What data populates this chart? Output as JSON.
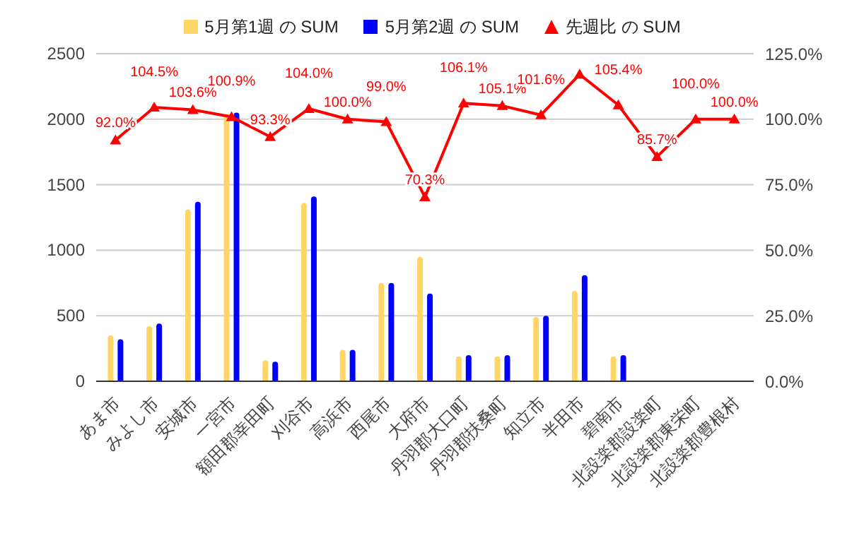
{
  "chart_data": {
    "type": "bar",
    "categories": [
      "あま市",
      "みよし市",
      "安城市",
      "一宮市",
      "額田郡幸田町",
      "刈谷市",
      "高浜市",
      "西尾市",
      "大府市",
      "丹羽郡大口町",
      "丹羽郡扶桑町",
      "知立市",
      "半田市",
      "碧南市",
      "北設楽郡設楽町",
      "北設楽郡東栄町",
      "北設楽郡豊根村"
    ],
    "series": [
      {
        "name": "5月第1週 の SUM",
        "color": "#ffd666",
        "values": [
          350,
          420,
          1310,
          2040,
          160,
          1360,
          240,
          750,
          950,
          190,
          190,
          490,
          690,
          190,
          null,
          0,
          0
        ]
      },
      {
        "name": "5月第2週 の SUM",
        "color": "#0000ff",
        "values": [
          320,
          440,
          1370,
          2050,
          150,
          1410,
          240,
          750,
          670,
          200,
          200,
          500,
          810,
          200,
          null,
          0,
          0
        ]
      },
      {
        "name": "先週比 の SUM",
        "color": "#ff0000",
        "type": "line",
        "axis": "y2",
        "values": [
          92.0,
          104.5,
          103.6,
          100.9,
          93.3,
          104.0,
          100.0,
          99.0,
          70.3,
          106.1,
          105.1,
          101.6,
          117.1,
          105.4,
          85.7,
          100.0,
          100.0
        ],
        "value_labels": [
          "92.0%",
          "104.5%",
          "103.6%",
          "100.9%",
          "93.3%",
          "104.0%",
          "100.0%",
          "99.0%",
          "70.3%",
          "106.1%",
          "105.1%",
          "101.6%",
          null,
          "105.4%",
          "85.7%",
          "100.0%",
          "100.0%"
        ]
      }
    ],
    "ylim": [
      0,
      2500
    ],
    "yticks": [
      0,
      500,
      1000,
      1500,
      2000,
      2500
    ],
    "y2lim": [
      0,
      125
    ],
    "y2ticks": [
      {
        "value": 0,
        "label": "0.0%"
      },
      {
        "value": 25,
        "label": "25.0%"
      },
      {
        "value": 50,
        "label": "50.0%"
      },
      {
        "value": 75,
        "label": "75.0%"
      },
      {
        "value": 100,
        "label": "100.0%"
      },
      {
        "value": 125,
        "label": "125.0%"
      }
    ],
    "grid": "y",
    "legend": "top",
    "marker": "triangle"
  }
}
